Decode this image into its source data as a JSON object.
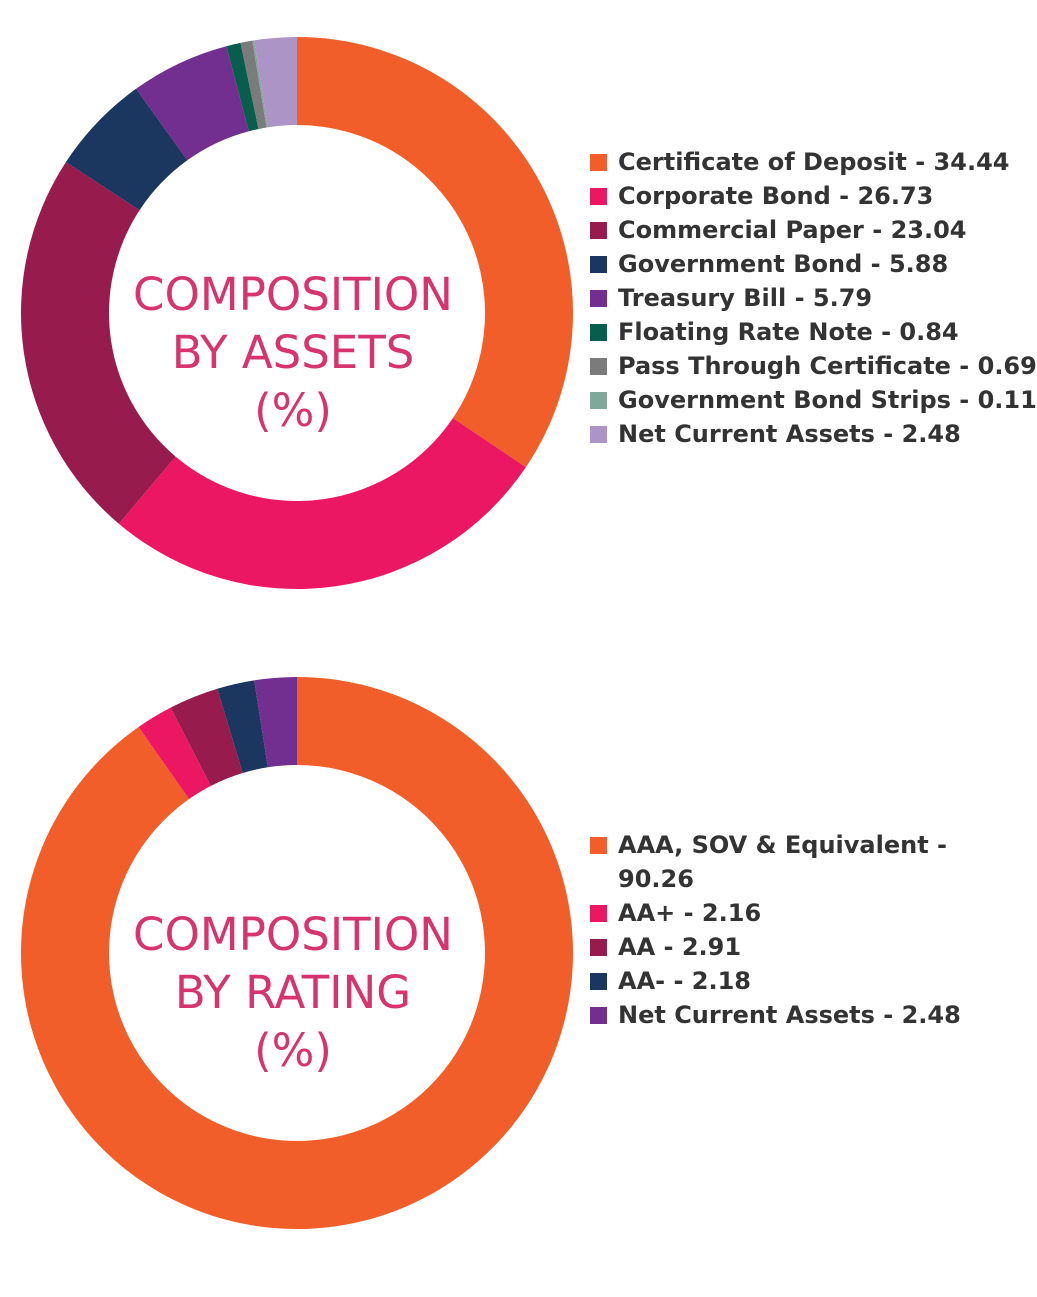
{
  "chart_data": [
    {
      "type": "pie",
      "variant": "donut",
      "center_label": [
        "COMPOSITION",
        "BY ASSETS",
        "(%)"
      ],
      "legend_position": "right",
      "slices": [
        {
          "label": "Certificate of Deposit - 34.44",
          "value": 34.44,
          "color": "#f15e29"
        },
        {
          "label": "Corporate Bond - 26.73",
          "value": 26.73,
          "color": "#ec1763"
        },
        {
          "label": "Commercial Paper - 23.04",
          "value": 23.04,
          "color": "#981b4d"
        },
        {
          "label": "Government Bond - 5.88",
          "value": 5.88,
          "color": "#1b365f"
        },
        {
          "label": "Treasury Bill - 5.79",
          "value": 5.79,
          "color": "#722f8f"
        },
        {
          "label": "Floating Rate Note - 0.84",
          "value": 0.84,
          "color": "#075e4d"
        },
        {
          "label": "Pass Through Certificate - 0.69",
          "value": 0.69,
          "color": "#7b7b7b"
        },
        {
          "label": "Government Bond Strips - 0.11",
          "value": 0.11,
          "color": "#80a89a"
        },
        {
          "label": "Net Current Assets - 2.48",
          "value": 2.48,
          "color": "#ad94c6"
        }
      ]
    },
    {
      "type": "pie",
      "variant": "donut",
      "center_label": [
        "COMPOSITION",
        "BY RATING",
        "(%)"
      ],
      "legend_position": "right",
      "slices": [
        {
          "label": "AAA, SOV & Equivalent - 90.26",
          "value": 90.26,
          "color": "#f15e29"
        },
        {
          "label": "AA+ - 2.16",
          "value": 2.16,
          "color": "#ec1763"
        },
        {
          "label": "AA - 2.91",
          "value": 2.91,
          "color": "#981b4d"
        },
        {
          "label": "AA- - 2.18",
          "value": 2.18,
          "color": "#1b365f"
        },
        {
          "label": "Net Current Assets - 2.48",
          "value": 2.48,
          "color": "#722f8f"
        }
      ]
    }
  ]
}
